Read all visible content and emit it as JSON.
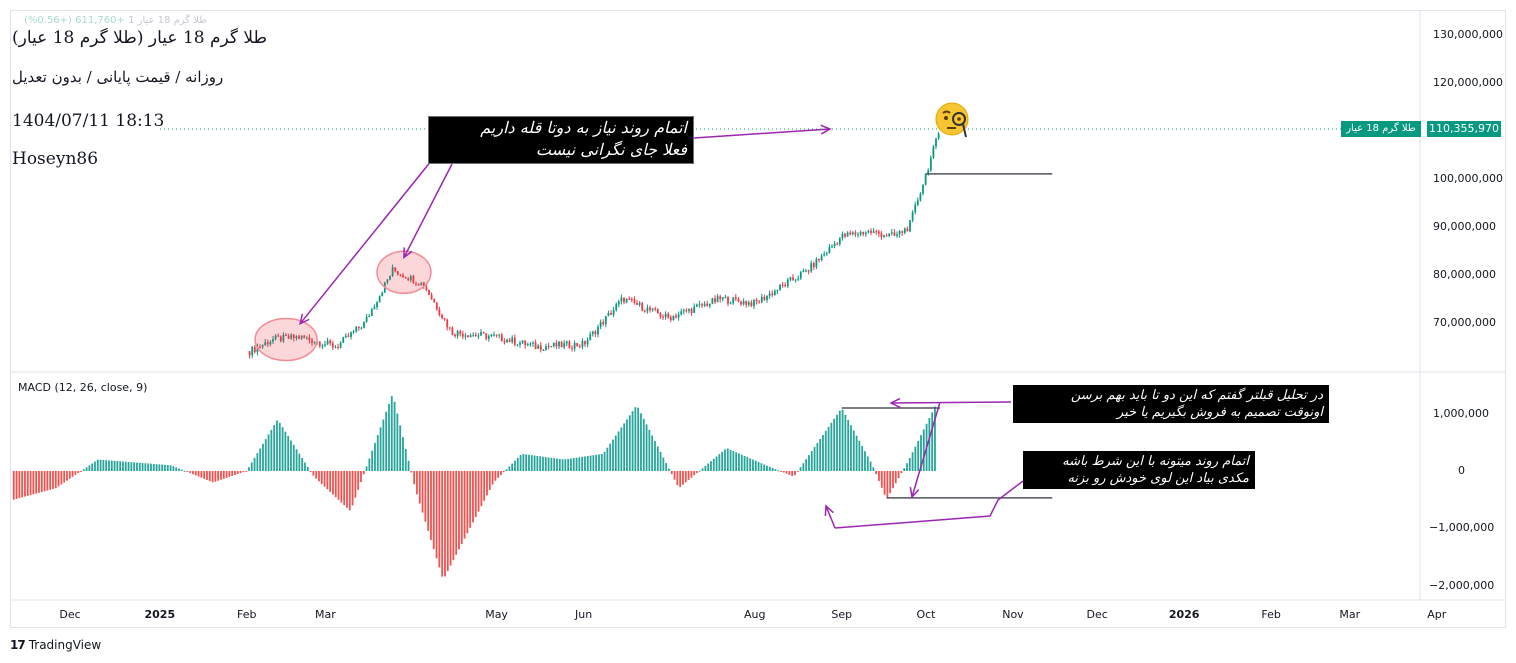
{
  "header": {
    "faded_title": "طلا گرم 18 عیار 1",
    "faded_change": "+611,760 (+0.56%)",
    "symbol": "طلا گرم 18 عیار (طلا گرم 18 عیار)",
    "interval": "روزانه / قیمت پایانی / بدون تعدیل",
    "datetime": "1404/07/11 18:13",
    "author": "Hoseyn86"
  },
  "price_tag": {
    "value": "110,355,970",
    "name": "طلا گرم 18 عیار",
    "color": "#089981"
  },
  "colors": {
    "up": "#089981",
    "down": "#f23645",
    "macd_up": "#26a69a",
    "macd_down": "#ef5350",
    "annotation": "#9c27b0"
  },
  "macd_title": "MACD (12, 26, close, 9)",
  "notes": {
    "note1_line1": "اتمام روند نیاز به دوتا قله داریم",
    "note1_line2": "فعلا جای نگرانی نیست",
    "note2_line1": "در تحلیل قبلتر گفتم که این دو تا باید بهم برسن",
    "note2_line2": "اونوقت تصمیم به فروش بگیریم یا خیر",
    "note3_line1": "اتمام روند میتونه با این شرط باشه",
    "note3_line2": "مکدی بیاد این لوی خودش رو بزنه"
  },
  "emoji_icon": "face-with-monocle-icon",
  "footer": {
    "logo_mark": "17",
    "logo_text": "TradingView"
  },
  "chart_data": [
    {
      "type": "candlestick",
      "title": "طلا گرم 18 عیار",
      "y_axis_ticks": [
        "130,000,000",
        "120,000,000",
        "100,000,000",
        "90,000,000",
        "80,000,000",
        "70,000,000"
      ],
      "y_axis_tick_values": [
        130000000,
        120000000,
        100000000,
        90000000,
        80000000,
        70000000
      ],
      "ylim": [
        62000000,
        132000000
      ],
      "x_axis_ticks": [
        "Dec",
        "2025",
        "Feb",
        "Mar",
        "May",
        "Jun",
        "Aug",
        "Sep",
        "Oct",
        "Nov",
        "Dec",
        "2026",
        "Feb",
        "Mar",
        "Apr"
      ],
      "x_axis_bold": [
        "2025",
        "2026"
      ],
      "last_close": 110355970,
      "close_anchors": [
        [
          "2025-02-02",
          64000000
        ],
        [
          "2025-02-10",
          66500000
        ],
        [
          "2025-02-20",
          67000000
        ],
        [
          "2025-03-05",
          65000000
        ],
        [
          "2025-03-15",
          70000000
        ],
        [
          "2025-03-25",
          81000000
        ],
        [
          "2025-04-05",
          78000000
        ],
        [
          "2025-04-15",
          68000000
        ],
        [
          "2025-05-01",
          67000000
        ],
        [
          "2025-05-15",
          65000000
        ],
        [
          "2025-06-01",
          65500000
        ],
        [
          "2025-06-15",
          75000000
        ],
        [
          "2025-07-01",
          71000000
        ],
        [
          "2025-07-20",
          75000000
        ],
        [
          "2025-08-01",
          74000000
        ],
        [
          "2025-08-20",
          81000000
        ],
        [
          "2025-09-01",
          88000000
        ],
        [
          "2025-09-10",
          89000000
        ],
        [
          "2025-09-20",
          88000000
        ],
        [
          "2025-09-25",
          90000000
        ],
        [
          "2025-10-01",
          101000000
        ],
        [
          "2025-10-06",
          110355970
        ]
      ],
      "horizontal_line": {
        "value": 101000000,
        "from": "2025-10-01",
        "to": "2025-11-15"
      }
    },
    {
      "type": "bar",
      "title": "MACD (12, 26, close, 9)",
      "y_axis_ticks": [
        "1,000,000",
        "0",
        "−1,000,000",
        "−2,000,000"
      ],
      "y_axis_tick_values": [
        1000000,
        0,
        -1000000,
        -2000000
      ],
      "ylim": [
        -2200000,
        1400000
      ],
      "histogram_anchors": [
        [
          "2024-11-10",
          -500000
        ],
        [
          "2024-11-25",
          -300000
        ],
        [
          "2024-12-10",
          200000
        ],
        [
          "2025-01-05",
          100000
        ],
        [
          "2025-01-20",
          -200000
        ],
        [
          "2025-02-01",
          0
        ],
        [
          "2025-02-12",
          900000
        ],
        [
          "2025-02-25",
          -100000
        ],
        [
          "2025-03-10",
          -700000
        ],
        [
          "2025-03-25",
          1350000
        ],
        [
          "2025-04-02",
          -300000
        ],
        [
          "2025-04-12",
          -1900000
        ],
        [
          "2025-04-30",
          -200000
        ],
        [
          "2025-05-10",
          300000
        ],
        [
          "2025-05-25",
          200000
        ],
        [
          "2025-06-08",
          300000
        ],
        [
          "2025-06-20",
          1150000
        ],
        [
          "2025-07-05",
          -300000
        ],
        [
          "2025-07-22",
          400000
        ],
        [
          "2025-08-05",
          100000
        ],
        [
          "2025-08-15",
          -100000
        ],
        [
          "2025-09-01",
          1100000
        ],
        [
          "2025-09-12",
          100000
        ],
        [
          "2025-09-17",
          -500000
        ],
        [
          "2025-09-25",
          200000
        ],
        [
          "2025-10-05",
          1200000
        ]
      ],
      "trendline_top": {
        "from": "2025-09-01",
        "to": "2025-10-06",
        "value": 1100000
      },
      "trendline_bottom": {
        "from": "2025-09-17",
        "to": "2025-11-15",
        "value": -470000
      }
    }
  ]
}
